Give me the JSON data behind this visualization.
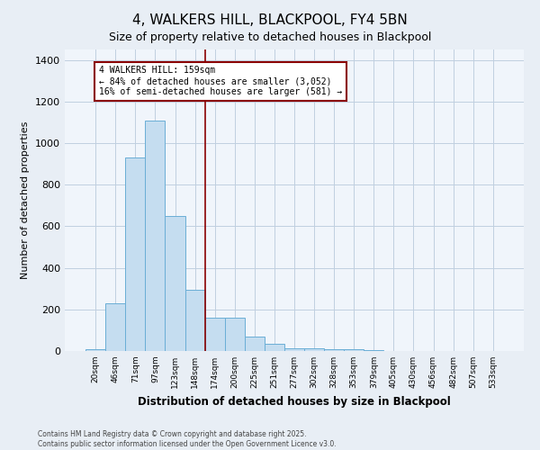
{
  "title": "4, WALKERS HILL, BLACKPOOL, FY4 5BN",
  "subtitle": "Size of property relative to detached houses in Blackpool",
  "xlabel": "Distribution of detached houses by size in Blackpool",
  "ylabel": "Number of detached properties",
  "categories": [
    "20sqm",
    "46sqm",
    "71sqm",
    "97sqm",
    "123sqm",
    "148sqm",
    "174sqm",
    "200sqm",
    "225sqm",
    "251sqm",
    "277sqm",
    "302sqm",
    "328sqm",
    "353sqm",
    "379sqm",
    "405sqm",
    "430sqm",
    "456sqm",
    "482sqm",
    "507sqm",
    "533sqm"
  ],
  "values": [
    10,
    228,
    930,
    1110,
    650,
    295,
    160,
    160,
    70,
    35,
    15,
    15,
    10,
    10,
    5,
    2,
    2,
    2,
    0,
    0,
    2
  ],
  "bar_color": "#c5ddf0",
  "bar_edge_color": "#6aaed6",
  "vline_x": 6.0,
  "vline_color": "#8b0000",
  "annotation_text": "4 WALKERS HILL: 159sqm\n← 84% of detached houses are smaller (3,052)\n16% of semi-detached houses are larger (581) →",
  "annotation_box_color": "#ffffff",
  "annotation_box_edge": "#8b0000",
  "footer1": "Contains HM Land Registry data © Crown copyright and database right 2025.",
  "footer2": "Contains public sector information licensed under the Open Government Licence v3.0.",
  "ylim": [
    0,
    1450
  ],
  "yticks": [
    0,
    200,
    400,
    600,
    800,
    1000,
    1200,
    1400
  ],
  "bg_color": "#e8eef5",
  "plot_bg": "#f0f5fb",
  "grid_color": "#c0cfe0",
  "title_fontsize": 11,
  "subtitle_fontsize": 9
}
